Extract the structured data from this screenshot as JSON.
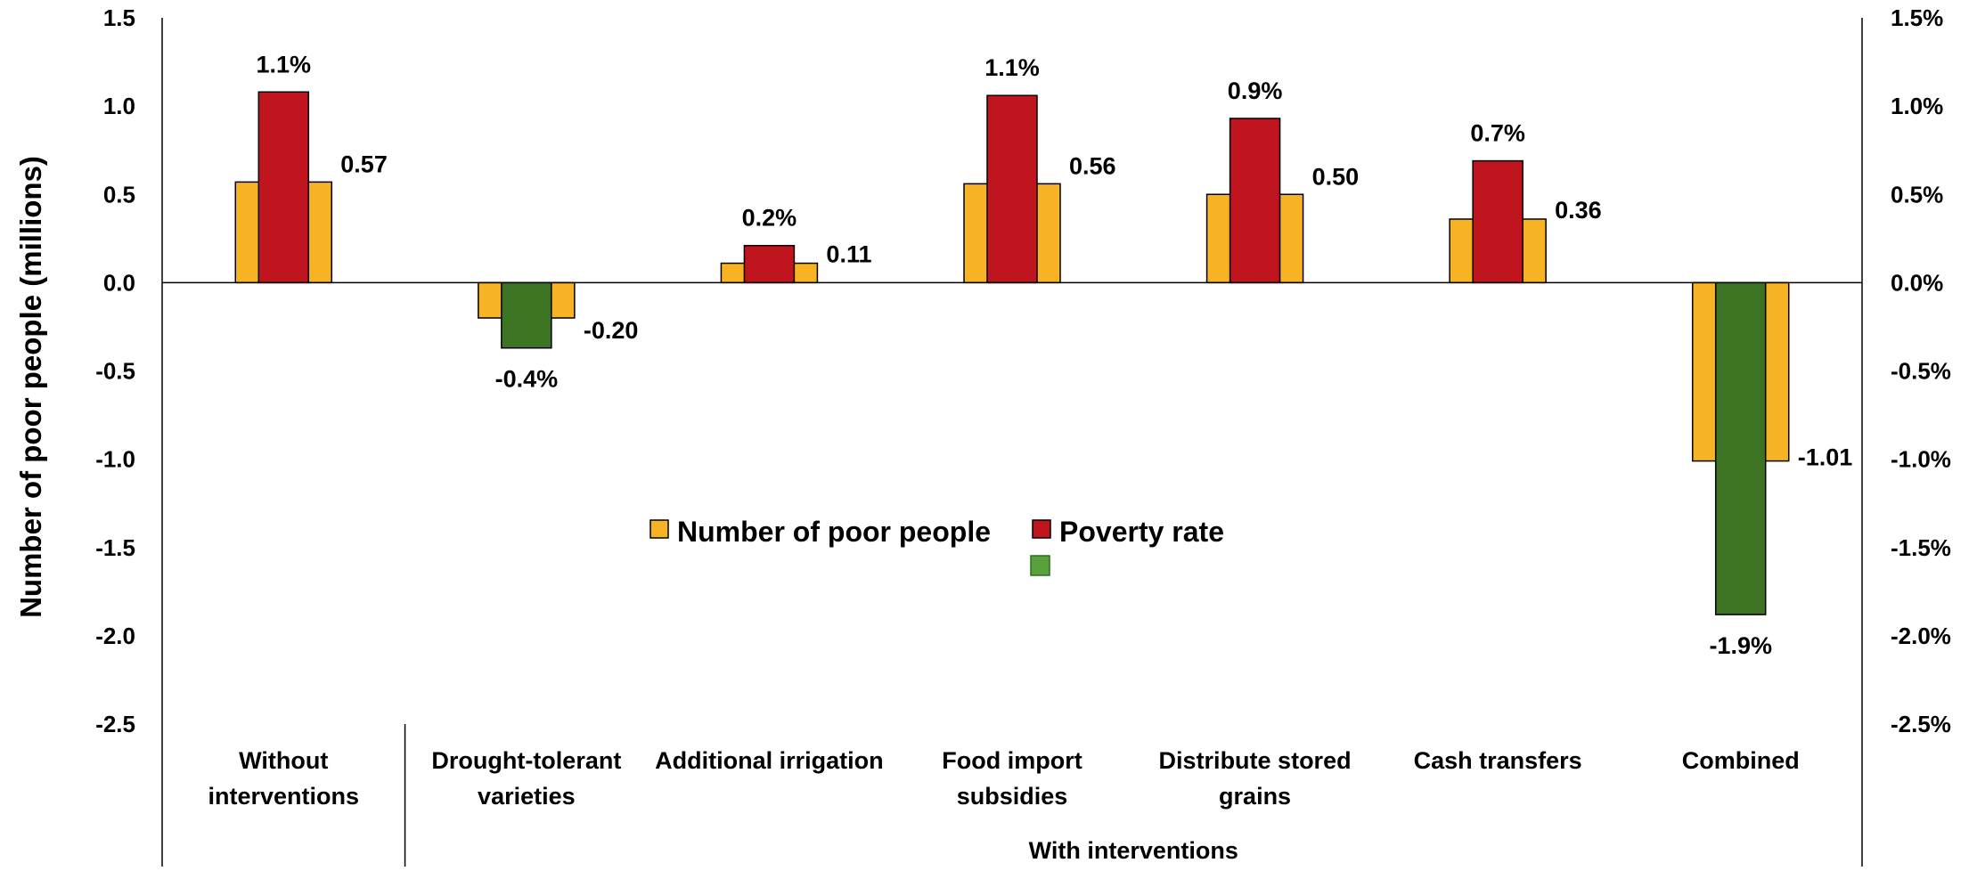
{
  "chart_data": {
    "type": "bar",
    "categories": [
      [
        "Without",
        "interventions"
      ],
      [
        "Drought-tolerant",
        "varieties"
      ],
      [
        "Additional irrigation"
      ],
      [
        "Food import",
        "subsidies"
      ],
      [
        "Distribute stored",
        "grains"
      ],
      [
        "Cash transfers"
      ],
      [
        "Combined"
      ]
    ],
    "group_label": "With interventions",
    "ylabel": "Number of poor people (millions)",
    "ylim": [
      -2.5,
      1.5
    ],
    "y_ticks": [
      "1.5",
      "1.0",
      "0.5",
      "0.0",
      "-0.5",
      "-1.0",
      "-1.5",
      "-2.0",
      "-2.5"
    ],
    "y2lim": [
      -2.5,
      1.5
    ],
    "y2_ticks": [
      "1.5%",
      "1.0%",
      "0.5%",
      "0.0%",
      "-0.5%",
      "-1.0%",
      "-1.5%",
      "-2.0%",
      "-2.5%"
    ],
    "series": [
      {
        "name": "Number of poor people",
        "axis": "left",
        "color": "#F8B324",
        "values": [
          0.57,
          -0.2,
          0.11,
          0.56,
          0.5,
          0.36,
          -1.01
        ],
        "labels": [
          "0.57",
          "-0.20",
          "0.11",
          "0.56",
          "0.50",
          "0.36",
          "-1.01"
        ]
      },
      {
        "name": "Poverty rate",
        "axis": "right",
        "positive_color": "#C0141F",
        "negative_color": "#3D7424",
        "values": [
          1.08,
          -0.37,
          0.21,
          1.06,
          0.93,
          0.69,
          -1.88
        ],
        "labels": [
          "1.1%",
          "-0.4%",
          "0.2%",
          "1.1%",
          "0.9%",
          "0.7%",
          "-1.9%"
        ]
      }
    ],
    "legend": {
      "placement": "center",
      "extra_swatch_color": "#58A13C"
    },
    "grid": false
  }
}
